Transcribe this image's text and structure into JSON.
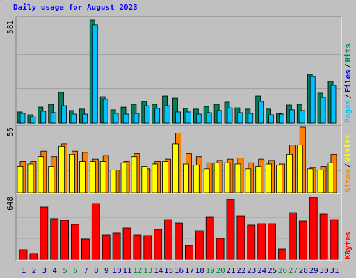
{
  "chart_data": {
    "type": "bar",
    "title": "Daily usage for August 2023",
    "categories": [
      "1",
      "2",
      "3",
      "4",
      "5",
      "6",
      "7",
      "8",
      "9",
      "10",
      "11",
      "12",
      "13",
      "14",
      "15",
      "16",
      "17",
      "18",
      "19",
      "20",
      "21",
      "22",
      "23",
      "24",
      "25",
      "26",
      "27",
      "28",
      "29",
      "30",
      "31"
    ],
    "weekend_indices": [
      4,
      5,
      11,
      12,
      18,
      19,
      25,
      26
    ],
    "weekday_color": "#000080",
    "weekend_color": "#008040",
    "legend_separator": "/",
    "panels": [
      {
        "ylim": [
          0,
          581
        ],
        "grid_divisions": 3,
        "legend": [
          "Pages",
          "Files",
          "Hits"
        ],
        "legend_colors": [
          "#00c0ff",
          "#0000ff",
          "#00805c"
        ],
        "series": [
          {
            "color": "#00805c",
            "values": [
              63,
              47,
              90,
              106,
              173,
              71,
              79,
              581,
              149,
              75,
              90,
              106,
              122,
              106,
              153,
              141,
              83,
              79,
              94,
              106,
              118,
              86,
              79,
              153,
              79,
              55,
              102,
              106,
              275,
              169,
              236
            ]
          },
          {
            "color": "#00c0ff",
            "values": [
              55,
              35,
              67,
              59,
              98,
              51,
              51,
              554,
              134,
              55,
              51,
              55,
              98,
              83,
              98,
              63,
              63,
              51,
              59,
              71,
              86,
              59,
              55,
              122,
              47,
              51,
              75,
              71,
              263,
              145,
              212
            ]
          }
        ]
      },
      {
        "ylim": [
          0,
          55
        ],
        "grid_divisions": 3,
        "legend": [
          "Sites",
          "Visits"
        ],
        "legend_colors": [
          "#ff8000",
          "#ffff00"
        ],
        "series": [
          {
            "color": "#ff8000",
            "values": [
              26,
              26,
              35,
              30,
              41,
              35,
              34,
              28,
              31,
              19,
              26,
              33,
              20,
              26,
              28,
              50,
              33,
              30,
              25,
              27,
              28,
              29,
              25,
              28,
              27,
              24,
              40,
              55,
              21,
              22,
              32
            ]
          },
          {
            "color": "#ffff00",
            "values": [
              22,
              24,
              30,
              22,
              39,
              32,
              26,
              26,
              26,
              19,
              25,
              30,
              22,
              24,
              26,
              41,
              24,
              23,
              20,
              25,
              25,
              24,
              20,
              22,
              24,
              23,
              32,
              40,
              20,
              19,
              25
            ]
          }
        ]
      },
      {
        "ylim": [
          0,
          648
        ],
        "grid_divisions": 3,
        "legend": [
          "KBytes"
        ],
        "legend_colors": [
          "#ff0000"
        ],
        "series": [
          {
            "color": "#ff0000",
            "values": [
              101,
              58,
              540,
              418,
              403,
              360,
              209,
              576,
              252,
              274,
              324,
              252,
              245,
              310,
              410,
              374,
              144,
              295,
              439,
              216,
              619,
              446,
              353,
              367,
              367,
              108,
              482,
              396,
              641,
              468,
              410
            ]
          }
        ]
      }
    ]
  }
}
